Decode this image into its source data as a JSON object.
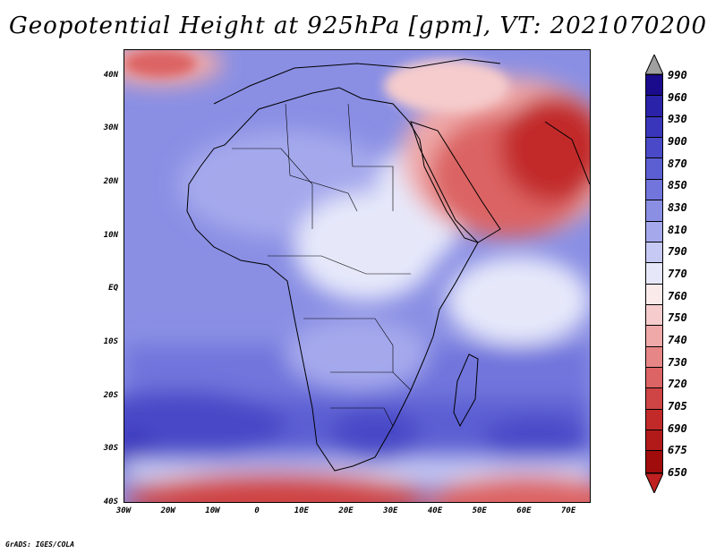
{
  "title": "Geopotential Height at 925hPa [gpm], VT: 2021070200",
  "credit": "GrADS: IGES/COLA",
  "map": {
    "lat_labels": [
      "40N",
      "30N",
      "20N",
      "10N",
      "EQ",
      "10S",
      "20S",
      "30S",
      "40S"
    ],
    "lon_labels": [
      "30W",
      "20W",
      "10W",
      "0",
      "10E",
      "20E",
      "30E",
      "40E",
      "50E",
      "60E",
      "70E"
    ],
    "extent": {
      "lon_min": -30,
      "lon_max": 75,
      "lat_min": -40,
      "lat_max": 45
    }
  },
  "colorbar": {
    "labels": [
      "990",
      "960",
      "930",
      "900",
      "870",
      "850",
      "830",
      "810",
      "790",
      "770",
      "760",
      "750",
      "740",
      "730",
      "720",
      "705",
      "690",
      "675",
      "650"
    ],
    "top_color": "#a0a0a0",
    "colors": [
      "#1a0a8c",
      "#2a22a8",
      "#3a36bc",
      "#4a4ac8",
      "#5c5fd2",
      "#7175dc",
      "#8a8fe4",
      "#a5a9ec",
      "#c6c9f4",
      "#e6e8fa",
      "#fbeaea",
      "#f6cccc",
      "#efa9a9",
      "#e68686",
      "#dc6464",
      "#cf4444",
      "#c22a2a",
      "#b21a1a",
      "#a00c0c"
    ],
    "bottom_color": "#c02020"
  }
}
